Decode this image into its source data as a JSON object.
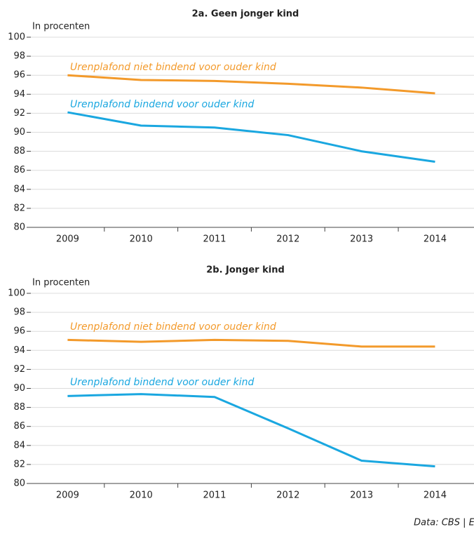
{
  "chart_data": [
    {
      "type": "line",
      "title": "2a. Geen jonger kind",
      "y_label": "In procenten",
      "categories": [
        "2009",
        "2010",
        "2011",
        "2012",
        "2013",
        "2014"
      ],
      "series": [
        {
          "name": "Urenplafond niet bindend voor ouder kind",
          "color": "#f39a2b",
          "values": [
            96.0,
            95.5,
            95.4,
            95.1,
            94.7,
            94.1
          ]
        },
        {
          "name": "Urenplafond bindend voor ouder kind",
          "color": "#1aa7e0",
          "values": [
            92.1,
            90.7,
            90.5,
            89.7,
            88.0,
            86.9
          ]
        }
      ],
      "ylim": [
        80,
        100
      ],
      "yticks": [
        80,
        82,
        84,
        86,
        88,
        90,
        92,
        94,
        96,
        98,
        100
      ],
      "grid": true
    },
    {
      "type": "line",
      "title": "2b. Jonger kind",
      "y_label": "In procenten",
      "categories": [
        "2009",
        "2010",
        "2011",
        "2012",
        "2013",
        "2014"
      ],
      "series": [
        {
          "name": "Urenplafond niet bindend voor ouder kind",
          "color": "#f39a2b",
          "values": [
            95.1,
            94.9,
            95.1,
            95.0,
            94.4,
            94.4
          ]
        },
        {
          "name": "Urenplafond bindend voor ouder kind",
          "color": "#1aa7e0",
          "values": [
            89.2,
            89.4,
            89.1,
            85.8,
            82.4,
            81.8
          ]
        }
      ],
      "ylim": [
        80,
        100
      ],
      "yticks": [
        80,
        82,
        84,
        86,
        88,
        90,
        92,
        94,
        96,
        98,
        100
      ],
      "grid": true
    }
  ],
  "source": "Data: CBS | ESB"
}
